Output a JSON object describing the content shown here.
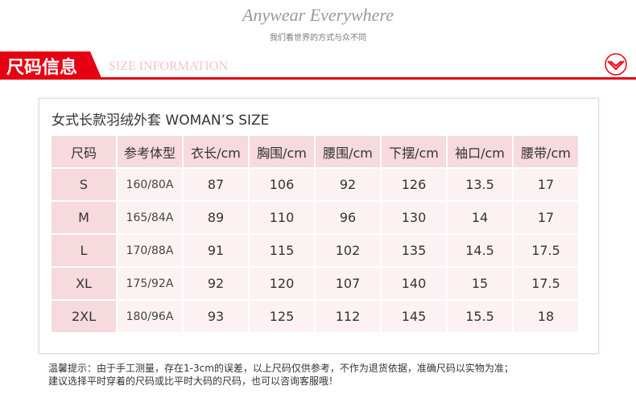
{
  "header": {
    "tagline": "Anywear Everywhere",
    "subtitle": "我们看世界的方式与众不同"
  },
  "section": {
    "title": "尺码信息",
    "subtitle": "SIZE INFORMATION"
  },
  "table": {
    "title": "女式长款羽绒外套 WOMAN’S SIZE",
    "columns": [
      "尺码",
      "参考体型",
      "衣长/cm",
      "胸围/cm",
      "腰围/cm",
      "下摆/cm",
      "袖口/cm",
      "腰带/cm"
    ],
    "rows": [
      [
        "S",
        "160/80A",
        "87",
        "106",
        "92",
        "126",
        "13.5",
        "17"
      ],
      [
        "M",
        "165/84A",
        "89",
        "110",
        "96",
        "130",
        "14",
        "17"
      ],
      [
        "L",
        "170/88A",
        "91",
        "115",
        "102",
        "135",
        "14.5",
        "17.5"
      ],
      [
        "XL",
        "175/92A",
        "92",
        "120",
        "107",
        "140",
        "15",
        "17.5"
      ],
      [
        "2XL",
        "180/96A",
        "93",
        "125",
        "112",
        "145",
        "15.5",
        "18"
      ]
    ]
  },
  "notes": [
    "温馨提示：由于手工测量，存在1-3cm的误差，以上尺码仅供参考，不作为退货依据，准确尺码以实物为准；",
    "建议选择平时穿着的尺码或比平时大码的尺码，也可以咨询客服哦！"
  ]
}
